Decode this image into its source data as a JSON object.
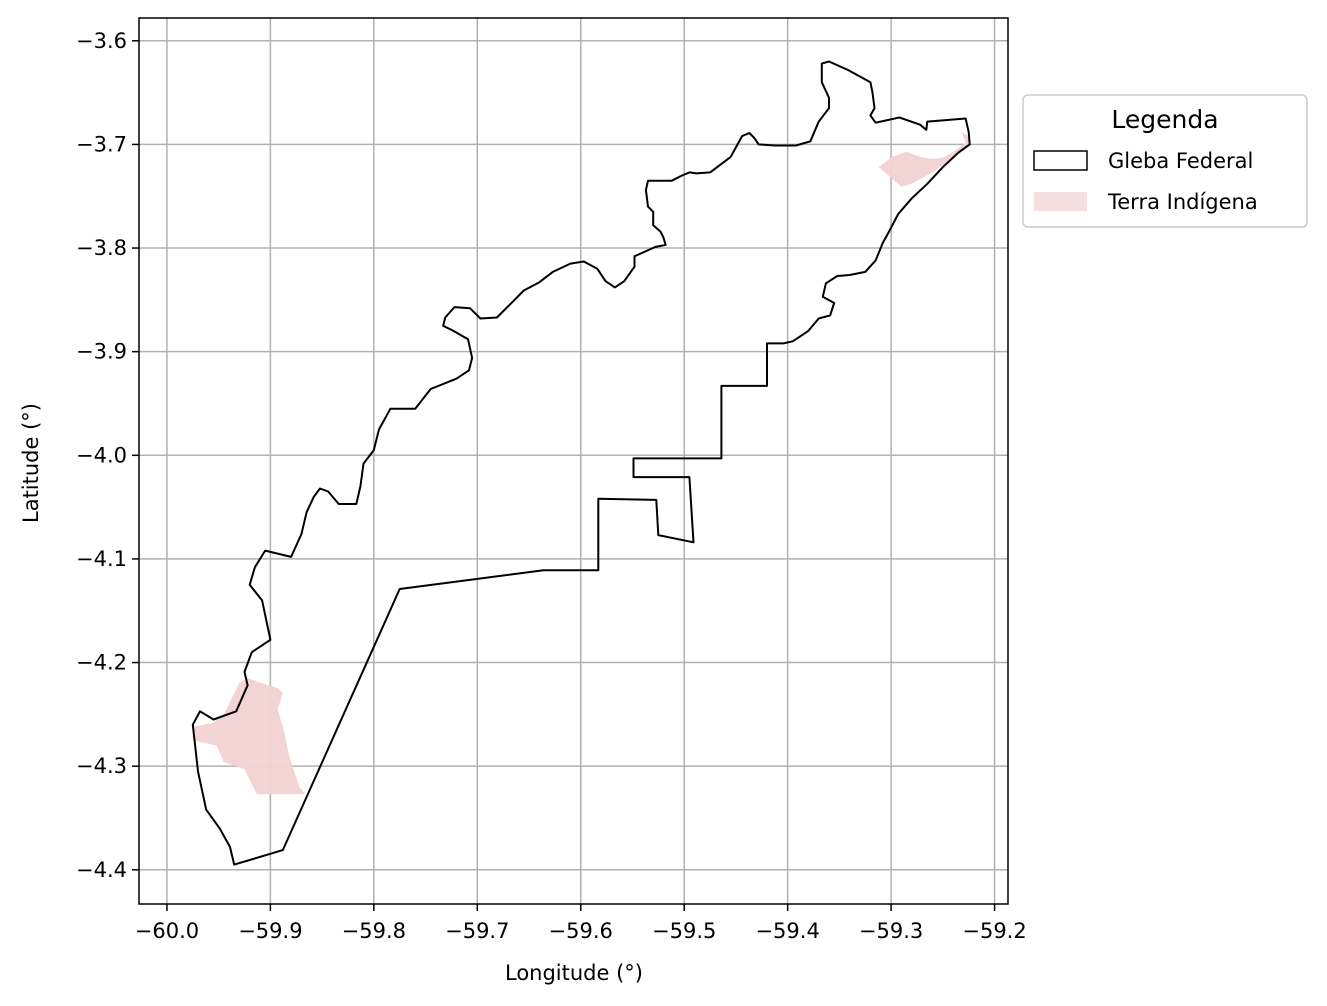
{
  "chart_data": {
    "type": "map",
    "xlabel": "Longitude (°)",
    "ylabel": "Latitude (°)",
    "xlim": [
      -60.027,
      -59.187
    ],
    "ylim": [
      -4.433,
      -3.578
    ],
    "x_ticks": [
      {
        "value": -60.0,
        "label": "−60.0"
      },
      {
        "value": -59.9,
        "label": "−59.9"
      },
      {
        "value": -59.8,
        "label": "−59.8"
      },
      {
        "value": -59.7,
        "label": "−59.7"
      },
      {
        "value": -59.6,
        "label": "−59.6"
      },
      {
        "value": -59.5,
        "label": "−59.5"
      },
      {
        "value": -59.4,
        "label": "−59.4"
      },
      {
        "value": -59.3,
        "label": "−59.3"
      },
      {
        "value": -59.2,
        "label": "−59.2"
      }
    ],
    "y_ticks": [
      {
        "value": -3.6,
        "label": "−3.6"
      },
      {
        "value": -3.7,
        "label": "−3.7"
      },
      {
        "value": -3.8,
        "label": "−3.8"
      },
      {
        "value": -3.9,
        "label": "−3.9"
      },
      {
        "value": -4.0,
        "label": "−4.0"
      },
      {
        "value": -4.1,
        "label": "−4.1"
      },
      {
        "value": -4.2,
        "label": "−4.2"
      },
      {
        "value": -4.3,
        "label": "−4.3"
      },
      {
        "value": -4.4,
        "label": "−4.4"
      }
    ],
    "grid": true,
    "legend": {
      "title": "Legenda",
      "placement": "outside-upper-right",
      "entries": [
        {
          "label": "Gleba Federal",
          "style": "outline",
          "color": "#000000"
        },
        {
          "label": "Terra Indígena",
          "style": "fill",
          "color": "#f2d2d2"
        }
      ]
    },
    "layers": [
      {
        "name": "Gleba Federal",
        "style": "outline",
        "stroke": "#000000",
        "coordinates": [
          [
            -59.935,
            -4.395
          ],
          [
            -59.888,
            -4.381
          ],
          [
            -59.775,
            -4.129
          ],
          [
            -59.636,
            -4.111
          ],
          [
            -59.583,
            -4.111
          ],
          [
            -59.583,
            -4.042
          ],
          [
            -59.527,
            -4.043
          ],
          [
            -59.525,
            -4.077
          ],
          [
            -59.491,
            -4.084
          ],
          [
            -59.495,
            -4.021
          ],
          [
            -59.549,
            -4.021
          ],
          [
            -59.549,
            -4.003
          ],
          [
            -59.464,
            -4.003
          ],
          [
            -59.464,
            -3.933
          ],
          [
            -59.42,
            -3.933
          ],
          [
            -59.42,
            -3.892
          ],
          [
            -59.404,
            -3.892
          ],
          [
            -59.395,
            -3.89
          ],
          [
            -59.38,
            -3.88
          ],
          [
            -59.37,
            -3.868
          ],
          [
            -59.359,
            -3.865
          ],
          [
            -59.355,
            -3.853
          ],
          [
            -59.366,
            -3.847
          ],
          [
            -59.363,
            -3.834
          ],
          [
            -59.352,
            -3.827
          ],
          [
            -59.34,
            -3.826
          ],
          [
            -59.325,
            -3.823
          ],
          [
            -59.315,
            -3.812
          ],
          [
            -59.308,
            -3.795
          ],
          [
            -59.303,
            -3.786
          ],
          [
            -59.293,
            -3.767
          ],
          [
            -59.28,
            -3.752
          ],
          [
            -59.265,
            -3.738
          ],
          [
            -59.25,
            -3.722
          ],
          [
            -59.235,
            -3.708
          ],
          [
            -59.224,
            -3.7
          ],
          [
            -59.225,
            -3.688
          ],
          [
            -59.228,
            -3.675
          ],
          [
            -59.265,
            -3.678
          ],
          [
            -59.266,
            -3.686
          ],
          [
            -59.272,
            -3.681
          ],
          [
            -59.292,
            -3.674
          ],
          [
            -59.315,
            -3.679
          ],
          [
            -59.32,
            -3.672
          ],
          [
            -59.316,
            -3.665
          ],
          [
            -59.318,
            -3.65
          ],
          [
            -59.32,
            -3.64
          ],
          [
            -59.342,
            -3.628
          ],
          [
            -59.36,
            -3.62
          ],
          [
            -59.367,
            -3.622
          ],
          [
            -59.367,
            -3.64
          ],
          [
            -59.36,
            -3.655
          ],
          [
            -59.36,
            -3.665
          ],
          [
            -59.37,
            -3.678
          ],
          [
            -59.378,
            -3.697
          ],
          [
            -59.392,
            -3.701
          ],
          [
            -59.412,
            -3.701
          ],
          [
            -59.428,
            -3.7
          ],
          [
            -59.432,
            -3.694
          ],
          [
            -59.437,
            -3.689
          ],
          [
            -59.444,
            -3.692
          ],
          [
            -59.455,
            -3.712
          ],
          [
            -59.475,
            -3.727
          ],
          [
            -59.488,
            -3.728
          ],
          [
            -59.495,
            -3.727
          ],
          [
            -59.502,
            -3.73
          ],
          [
            -59.512,
            -3.735
          ],
          [
            -59.523,
            -3.735
          ],
          [
            -59.535,
            -3.735
          ],
          [
            -59.537,
            -3.744
          ],
          [
            -59.535,
            -3.76
          ],
          [
            -59.53,
            -3.765
          ],
          [
            -59.53,
            -3.778
          ],
          [
            -59.523,
            -3.784
          ],
          [
            -59.52,
            -3.79
          ],
          [
            -59.518,
            -3.797
          ],
          [
            -59.528,
            -3.799
          ],
          [
            -59.548,
            -3.808
          ],
          [
            -59.548,
            -3.818
          ],
          [
            -59.558,
            -3.832
          ],
          [
            -59.567,
            -3.838
          ],
          [
            -59.576,
            -3.832
          ],
          [
            -59.584,
            -3.82
          ],
          [
            -59.597,
            -3.813
          ],
          [
            -59.61,
            -3.815
          ],
          [
            -59.627,
            -3.823
          ],
          [
            -59.64,
            -3.833
          ],
          [
            -59.655,
            -3.841
          ],
          [
            -59.666,
            -3.852
          ],
          [
            -59.681,
            -3.867
          ],
          [
            -59.697,
            -3.868
          ],
          [
            -59.707,
            -3.858
          ],
          [
            -59.722,
            -3.857
          ],
          [
            -59.731,
            -3.867
          ],
          [
            -59.733,
            -3.875
          ],
          [
            -59.723,
            -3.88
          ],
          [
            -59.709,
            -3.888
          ],
          [
            -59.705,
            -3.906
          ],
          [
            -59.708,
            -3.918
          ],
          [
            -59.72,
            -3.926
          ],
          [
            -59.745,
            -3.936
          ],
          [
            -59.76,
            -3.955
          ],
          [
            -59.784,
            -3.955
          ],
          [
            -59.795,
            -3.975
          ],
          [
            -59.8,
            -3.995
          ],
          [
            -59.81,
            -4.008
          ],
          [
            -59.813,
            -4.03
          ],
          [
            -59.817,
            -4.047
          ],
          [
            -59.834,
            -4.047
          ],
          [
            -59.844,
            -4.035
          ],
          [
            -59.852,
            -4.032
          ],
          [
            -59.858,
            -4.04
          ],
          [
            -59.865,
            -4.055
          ],
          [
            -59.87,
            -4.076
          ],
          [
            -59.88,
            -4.098
          ],
          [
            -59.905,
            -4.092
          ],
          [
            -59.915,
            -4.108
          ],
          [
            -59.92,
            -4.125
          ],
          [
            -59.908,
            -4.14
          ],
          [
            -59.9,
            -4.178
          ],
          [
            -59.918,
            -4.19
          ],
          [
            -59.925,
            -4.209
          ],
          [
            -59.922,
            -4.222
          ],
          [
            -59.933,
            -4.247
          ],
          [
            -59.955,
            -4.255
          ],
          [
            -59.968,
            -4.247
          ],
          [
            -59.975,
            -4.26
          ],
          [
            -59.97,
            -4.305
          ],
          [
            -59.962,
            -4.342
          ],
          [
            -59.949,
            -4.36
          ],
          [
            -59.939,
            -4.378
          ],
          [
            -59.935,
            -4.395
          ]
        ]
      },
      {
        "name": "Terra Indígena",
        "style": "fill",
        "fill": "#f2d2d2",
        "coordinates": [
          [
            -59.975,
            -4.262
          ],
          [
            -59.955,
            -4.258
          ],
          [
            -59.945,
            -4.25
          ],
          [
            -59.93,
            -4.22
          ],
          [
            -59.922,
            -4.215
          ],
          [
            -59.908,
            -4.22
          ],
          [
            -59.892,
            -4.225
          ],
          [
            -59.888,
            -4.23
          ],
          [
            -59.893,
            -4.245
          ],
          [
            -59.887,
            -4.265
          ],
          [
            -59.882,
            -4.29
          ],
          [
            -59.872,
            -4.32
          ],
          [
            -59.866,
            -4.327
          ],
          [
            -59.913,
            -4.327
          ],
          [
            -59.925,
            -4.303
          ],
          [
            -59.945,
            -4.296
          ],
          [
            -59.952,
            -4.28
          ],
          [
            -59.975,
            -4.275
          ],
          [
            -59.975,
            -4.262
          ]
        ]
      },
      {
        "name": "Terra Indígena",
        "style": "fill",
        "fill": "#f2d2d2",
        "coordinates": [
          [
            -59.312,
            -3.722
          ],
          [
            -59.299,
            -3.712
          ],
          [
            -59.285,
            -3.707
          ],
          [
            -59.272,
            -3.712
          ],
          [
            -59.262,
            -3.714
          ],
          [
            -59.25,
            -3.713
          ],
          [
            -59.238,
            -3.706
          ],
          [
            -59.228,
            -3.698
          ],
          [
            -59.232,
            -3.688
          ],
          [
            -59.225,
            -3.692
          ],
          [
            -59.226,
            -3.702
          ],
          [
            -59.238,
            -3.712
          ],
          [
            -59.26,
            -3.727
          ],
          [
            -59.28,
            -3.738
          ],
          [
            -59.29,
            -3.741
          ],
          [
            -59.3,
            -3.732
          ],
          [
            -59.312,
            -3.722
          ]
        ]
      }
    ]
  }
}
